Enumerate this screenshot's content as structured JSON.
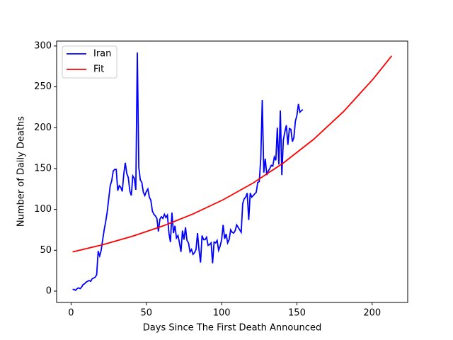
{
  "chart_data": {
    "type": "line",
    "x_label": "Days Since The First Death Announced",
    "y_label": "Number of Daily Deaths",
    "xlim": [
      -9.6,
      223.6
    ],
    "ylim": [
      -13.9,
      306
    ],
    "xticks": [
      0,
      50,
      100,
      150,
      200
    ],
    "yticks": [
      0,
      50,
      100,
      150,
      200,
      250,
      300
    ],
    "legend": "upper left",
    "series": [
      {
        "name": "Iran",
        "color": "#0000ff",
        "x": [
          1,
          2,
          3,
          4,
          5,
          6,
          7,
          8,
          9,
          10,
          11,
          12,
          13,
          14,
          15,
          16,
          17,
          18,
          19,
          20,
          21,
          22,
          23,
          24,
          25,
          26,
          27,
          28,
          29,
          30,
          31,
          32,
          33,
          34,
          35,
          36,
          37,
          38,
          39,
          40,
          41,
          42,
          43,
          44,
          45,
          46,
          47,
          48,
          49,
          50,
          51,
          52,
          53,
          54,
          55,
          56,
          57,
          58,
          59,
          60,
          61,
          62,
          63,
          64,
          65,
          66,
          67,
          68,
          69,
          70,
          71,
          72,
          73,
          74,
          75,
          76,
          77,
          78,
          79,
          80,
          81,
          82,
          83,
          84,
          85,
          86,
          87,
          88,
          89,
          90,
          91,
          92,
          93,
          94,
          95,
          96,
          97,
          98,
          99,
          100,
          101,
          102,
          103,
          104,
          105,
          106,
          107,
          108,
          109,
          110,
          111,
          112,
          113,
          114,
          115,
          116,
          117,
          118,
          119,
          120,
          121,
          122,
          123,
          124,
          125,
          126,
          127,
          128,
          129,
          130,
          131,
          132,
          133,
          134,
          135,
          136,
          137,
          138,
          139,
          140,
          141,
          142,
          143,
          144,
          145,
          146,
          147,
          148,
          149,
          150,
          151,
          152,
          153,
          154
        ],
        "values": [
          2,
          2,
          1,
          3,
          4,
          3,
          5,
          8,
          9,
          11,
          12,
          13,
          12,
          15,
          16,
          17,
          20,
          49,
          43,
          50,
          63,
          75,
          85,
          97,
          113,
          129,
          135,
          147,
          149,
          149,
          123,
          129,
          127,
          122,
          143,
          157,
          144,
          139,
          123,
          117,
          141,
          138,
          124,
          292,
          151,
          136,
          133,
          121,
          117,
          122,
          125,
          115,
          111,
          98,
          94,
          92,
          89,
          73,
          88,
          91,
          89,
          94,
          90,
          93,
          71,
          60,
          96,
          71,
          80,
          65,
          68,
          59,
          48,
          74,
          63,
          78,
          62,
          59,
          48,
          51,
          45,
          47,
          51,
          71,
          50,
          35,
          68,
          63,
          63,
          66,
          56,
          57,
          59,
          34,
          60,
          59,
          62,
          50,
          55,
          63,
          81,
          64,
          70,
          59,
          63,
          75,
          72,
          71,
          74,
          81,
          78,
          75,
          72,
          107,
          113,
          115,
          120,
          87,
          120,
          115,
          117,
          119,
          121,
          133,
          134,
          162,
          234,
          145,
          162,
          142,
          147,
          150,
          154,
          153,
          164,
          160,
          200,
          155,
          221,
          142,
          185,
          195,
          203,
          179,
          199,
          198,
          183,
          188,
          208,
          215,
          229,
          219,
          221,
          222
        ]
      },
      {
        "name": "Fit",
        "color": "#ff0000",
        "x": [
          1,
          21,
          41,
          61,
          81,
          101,
          121,
          141,
          161,
          181,
          201,
          213
        ],
        "values": [
          48,
          56.8,
          67.3,
          79.7,
          94.4,
          111.8,
          132.4,
          156.8,
          185.6,
          219.8,
          260.3,
          288
        ]
      }
    ]
  }
}
